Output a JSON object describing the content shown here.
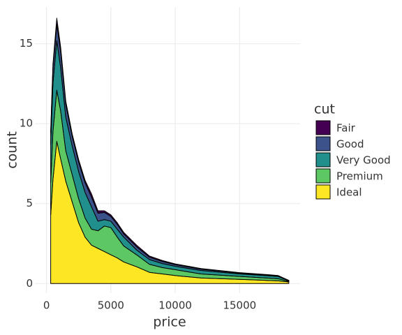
{
  "chart_data": {
    "type": "stacked_density",
    "x_label": "price",
    "y_label": "count",
    "legend_title": "cut",
    "x": [
      326,
      500,
      800,
      1100,
      1500,
      2000,
      2500,
      3000,
      3500,
      4000,
      4500,
      5000,
      5500,
      6000,
      7000,
      8000,
      9000,
      10000,
      12000,
      15000,
      17000,
      18000,
      18823
    ],
    "series": [
      {
        "name": "Fair",
        "color": "#440154",
        "values": [
          0.05,
          0.2,
          0.4,
          0.3,
          0.2,
          0.15,
          0.15,
          0.15,
          0.2,
          0.15,
          0.1,
          0.1,
          0.1,
          0.1,
          0.1,
          0.07,
          0.06,
          0.05,
          0.04,
          0.03,
          0.03,
          0.03,
          0.01
        ]
      },
      {
        "name": "Good",
        "color": "#3b528b",
        "values": [
          0.75,
          1.0,
          1.0,
          1.0,
          0.8,
          0.6,
          0.6,
          0.6,
          0.6,
          0.5,
          0.45,
          0.3,
          0.3,
          0.2,
          0.2,
          0.15,
          0.13,
          0.1,
          0.08,
          0.05,
          0.04,
          0.03,
          0.02
        ]
      },
      {
        "name": "Very Good",
        "color": "#21908c",
        "values": [
          2.4,
          3.0,
          3.1,
          2.7,
          2.1,
          1.8,
          1.7,
          1.6,
          1.4,
          0.6,
          0.4,
          0.4,
          0.5,
          0.55,
          0.3,
          0.3,
          0.25,
          0.21,
          0.22,
          0.15,
          0.15,
          0.14,
          0.04
        ]
      },
      {
        "name": "Premium",
        "color": "#5dc863",
        "values": [
          2.0,
          3.0,
          3.2,
          3.0,
          1.9,
          1.7,
          1.5,
          1.2,
          1.0,
          1.1,
          1.6,
          1.7,
          1.3,
          1.0,
          0.75,
          0.5,
          0.4,
          0.37,
          0.25,
          0.19,
          0.15,
          0.13,
          0.03
        ]
      },
      {
        "name": "Ideal",
        "color": "#fde725",
        "values": [
          4.3,
          6.5,
          8.9,
          7.8,
          6.4,
          5.1,
          3.8,
          2.9,
          2.4,
          2.2,
          2.0,
          1.8,
          1.6,
          1.35,
          1.05,
          0.7,
          0.6,
          0.5,
          0.35,
          0.26,
          0.2,
          0.17,
          0.1
        ]
      }
    ],
    "xlim": [
      -900,
      19700
    ],
    "xticks": [
      0,
      5000,
      10000,
      15000
    ],
    "ylim": [
      -0.6,
      17.3
    ],
    "yticks": [
      0,
      5,
      10,
      15
    ],
    "grid": true
  }
}
